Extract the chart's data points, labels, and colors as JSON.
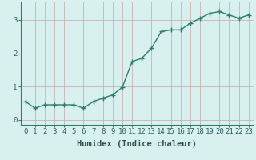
{
  "xlabel": "Humidex (Indice chaleur)",
  "ylabel": "",
  "x_values": [
    0,
    1,
    2,
    3,
    4,
    5,
    6,
    7,
    8,
    9,
    10,
    11,
    12,
    13,
    14,
    15,
    16,
    17,
    18,
    19,
    20,
    21,
    22,
    23
  ],
  "y_values": [
    0.55,
    0.35,
    0.45,
    0.45,
    0.45,
    0.45,
    0.35,
    0.55,
    0.65,
    0.75,
    0.98,
    1.75,
    1.85,
    2.15,
    2.65,
    2.7,
    2.7,
    2.9,
    3.05,
    3.2,
    3.25,
    3.15,
    3.05,
    3.15
  ],
  "line_color": "#2d7d70",
  "marker": "+",
  "marker_size": 4,
  "bg_color": "#d8f0ee",
  "grid_color": "#c8a8a8",
  "xlim": [
    -0.5,
    23.5
  ],
  "ylim": [
    -0.15,
    3.55
  ],
  "yticks": [
    0,
    1,
    2,
    3
  ],
  "xticks": [
    0,
    1,
    2,
    3,
    4,
    5,
    6,
    7,
    8,
    9,
    10,
    11,
    12,
    13,
    14,
    15,
    16,
    17,
    18,
    19,
    20,
    21,
    22,
    23
  ],
  "tick_fontsize": 6.5,
  "xlabel_fontsize": 7.5,
  "line_width": 1.0,
  "spine_color": "#2d7d70"
}
